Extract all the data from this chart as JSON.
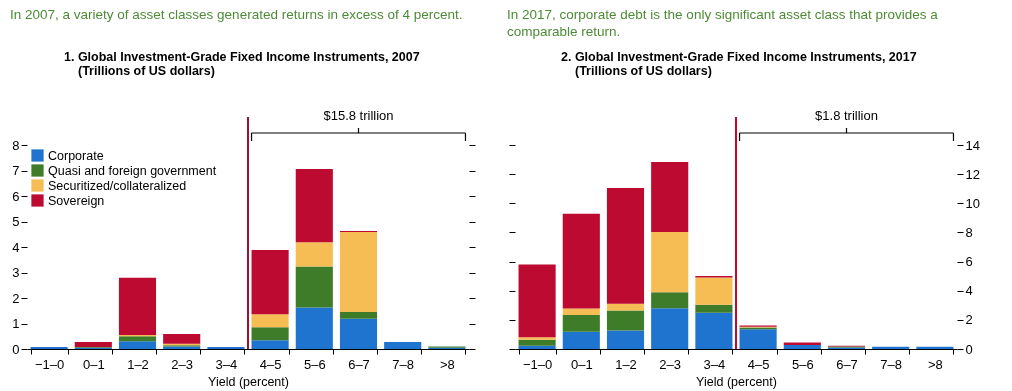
{
  "chart_data": [
    {
      "type": "bar",
      "title": "In 2007, a variety of asset classes generated returns in excess of 4 percent.",
      "subtitle": "1. Global Investment-Grade Fixed Income Instruments, 2007",
      "ylabel": "(Trillions of US dollars)",
      "xlabel": "Yield (percent)",
      "categories": [
        "−1–0",
        "0–1",
        "1–2",
        "2–3",
        "3–4",
        "4–5",
        "5–6",
        "6–7",
        "7–8",
        ">8"
      ],
      "stacked": true,
      "ylim": [
        0,
        8
      ],
      "yticks": [
        0,
        1,
        2,
        3,
        4,
        5,
        6,
        7,
        8
      ],
      "legend": "top left",
      "series": [
        {
          "name": "Corporate",
          "color": "#1f74d0",
          "values": [
            0.08,
            0.05,
            0.3,
            0.1,
            0.08,
            0.34,
            1.63,
            1.19,
            0.27,
            0.05
          ]
        },
        {
          "name": "Quasi and foreign government",
          "color": "#3f7c2a",
          "values": [
            0,
            0.03,
            0.2,
            0.05,
            0,
            0.51,
            1.61,
            0.26,
            0,
            0.05
          ]
        },
        {
          "name": "Securitized/collateralized",
          "color": "#f7bd55",
          "values": [
            0,
            0,
            0.05,
            0.06,
            0,
            0.51,
            0.95,
            3.14,
            0,
            0
          ]
        },
        {
          "name": "Sovereign",
          "color": "#bd0a30",
          "values": [
            0,
            0.19,
            2.24,
            0.38,
            0,
            2.52,
            2.87,
            0.04,
            0,
            0
          ]
        }
      ],
      "ref_lines": [
        {
          "axis": "x",
          "value": "4–5",
          "color": "#a0102c"
        }
      ],
      "annotations": [
        {
          "text": "$15.8 trillion",
          "x": "6–7"
        }
      ]
    },
    {
      "type": "bar",
      "title": "In 2017, corporate debt is the only significant asset class that provides a comparable return.",
      "subtitle": "2. Global Investment-Grade Fixed Income Instruments, 2017",
      "ylabel": "(Trillions of US dollars)",
      "xlabel": "Yield (percent)",
      "categories": [
        "−1–0",
        "0–1",
        "1–2",
        "2–3",
        "3–4",
        "4–5",
        "5–6",
        "6–7",
        "7–8",
        ">8"
      ],
      "stacked": true,
      "y2lim": [
        0,
        14
      ],
      "y2ticks": [
        0,
        2,
        4,
        6,
        8,
        10,
        12,
        14
      ],
      "series": [
        {
          "color": "#1f74d0",
          "axis": "y2",
          "values": [
            0.22,
            1.18,
            1.27,
            2.8,
            2.49,
            1.36,
            0.28,
            0.1,
            0.15,
            0.15
          ]
        },
        {
          "color": "#3f7c2a",
          "axis": "y2",
          "values": [
            0.41,
            1.16,
            1.38,
            1.1,
            0.55,
            0.11,
            0,
            0.07,
            0,
            0
          ]
        },
        {
          "color": "#f7bd55",
          "axis": "y2",
          "values": [
            0.18,
            0.44,
            0.46,
            4.13,
            1.86,
            0.06,
            0,
            0,
            0,
            0
          ]
        },
        {
          "color": "#bd0a30",
          "axis": "y2",
          "values": [
            4.99,
            6.5,
            7.94,
            4.81,
            0.11,
            0.09,
            0.16,
            0.05,
            0,
            0
          ]
        }
      ],
      "ref_lines": [
        {
          "axis": "x",
          "value": "4–5",
          "color": "#bd0a30"
        }
      ],
      "annotations": [
        {
          "text": "$1.8 trillion",
          "x": "6–7"
        }
      ]
    }
  ]
}
